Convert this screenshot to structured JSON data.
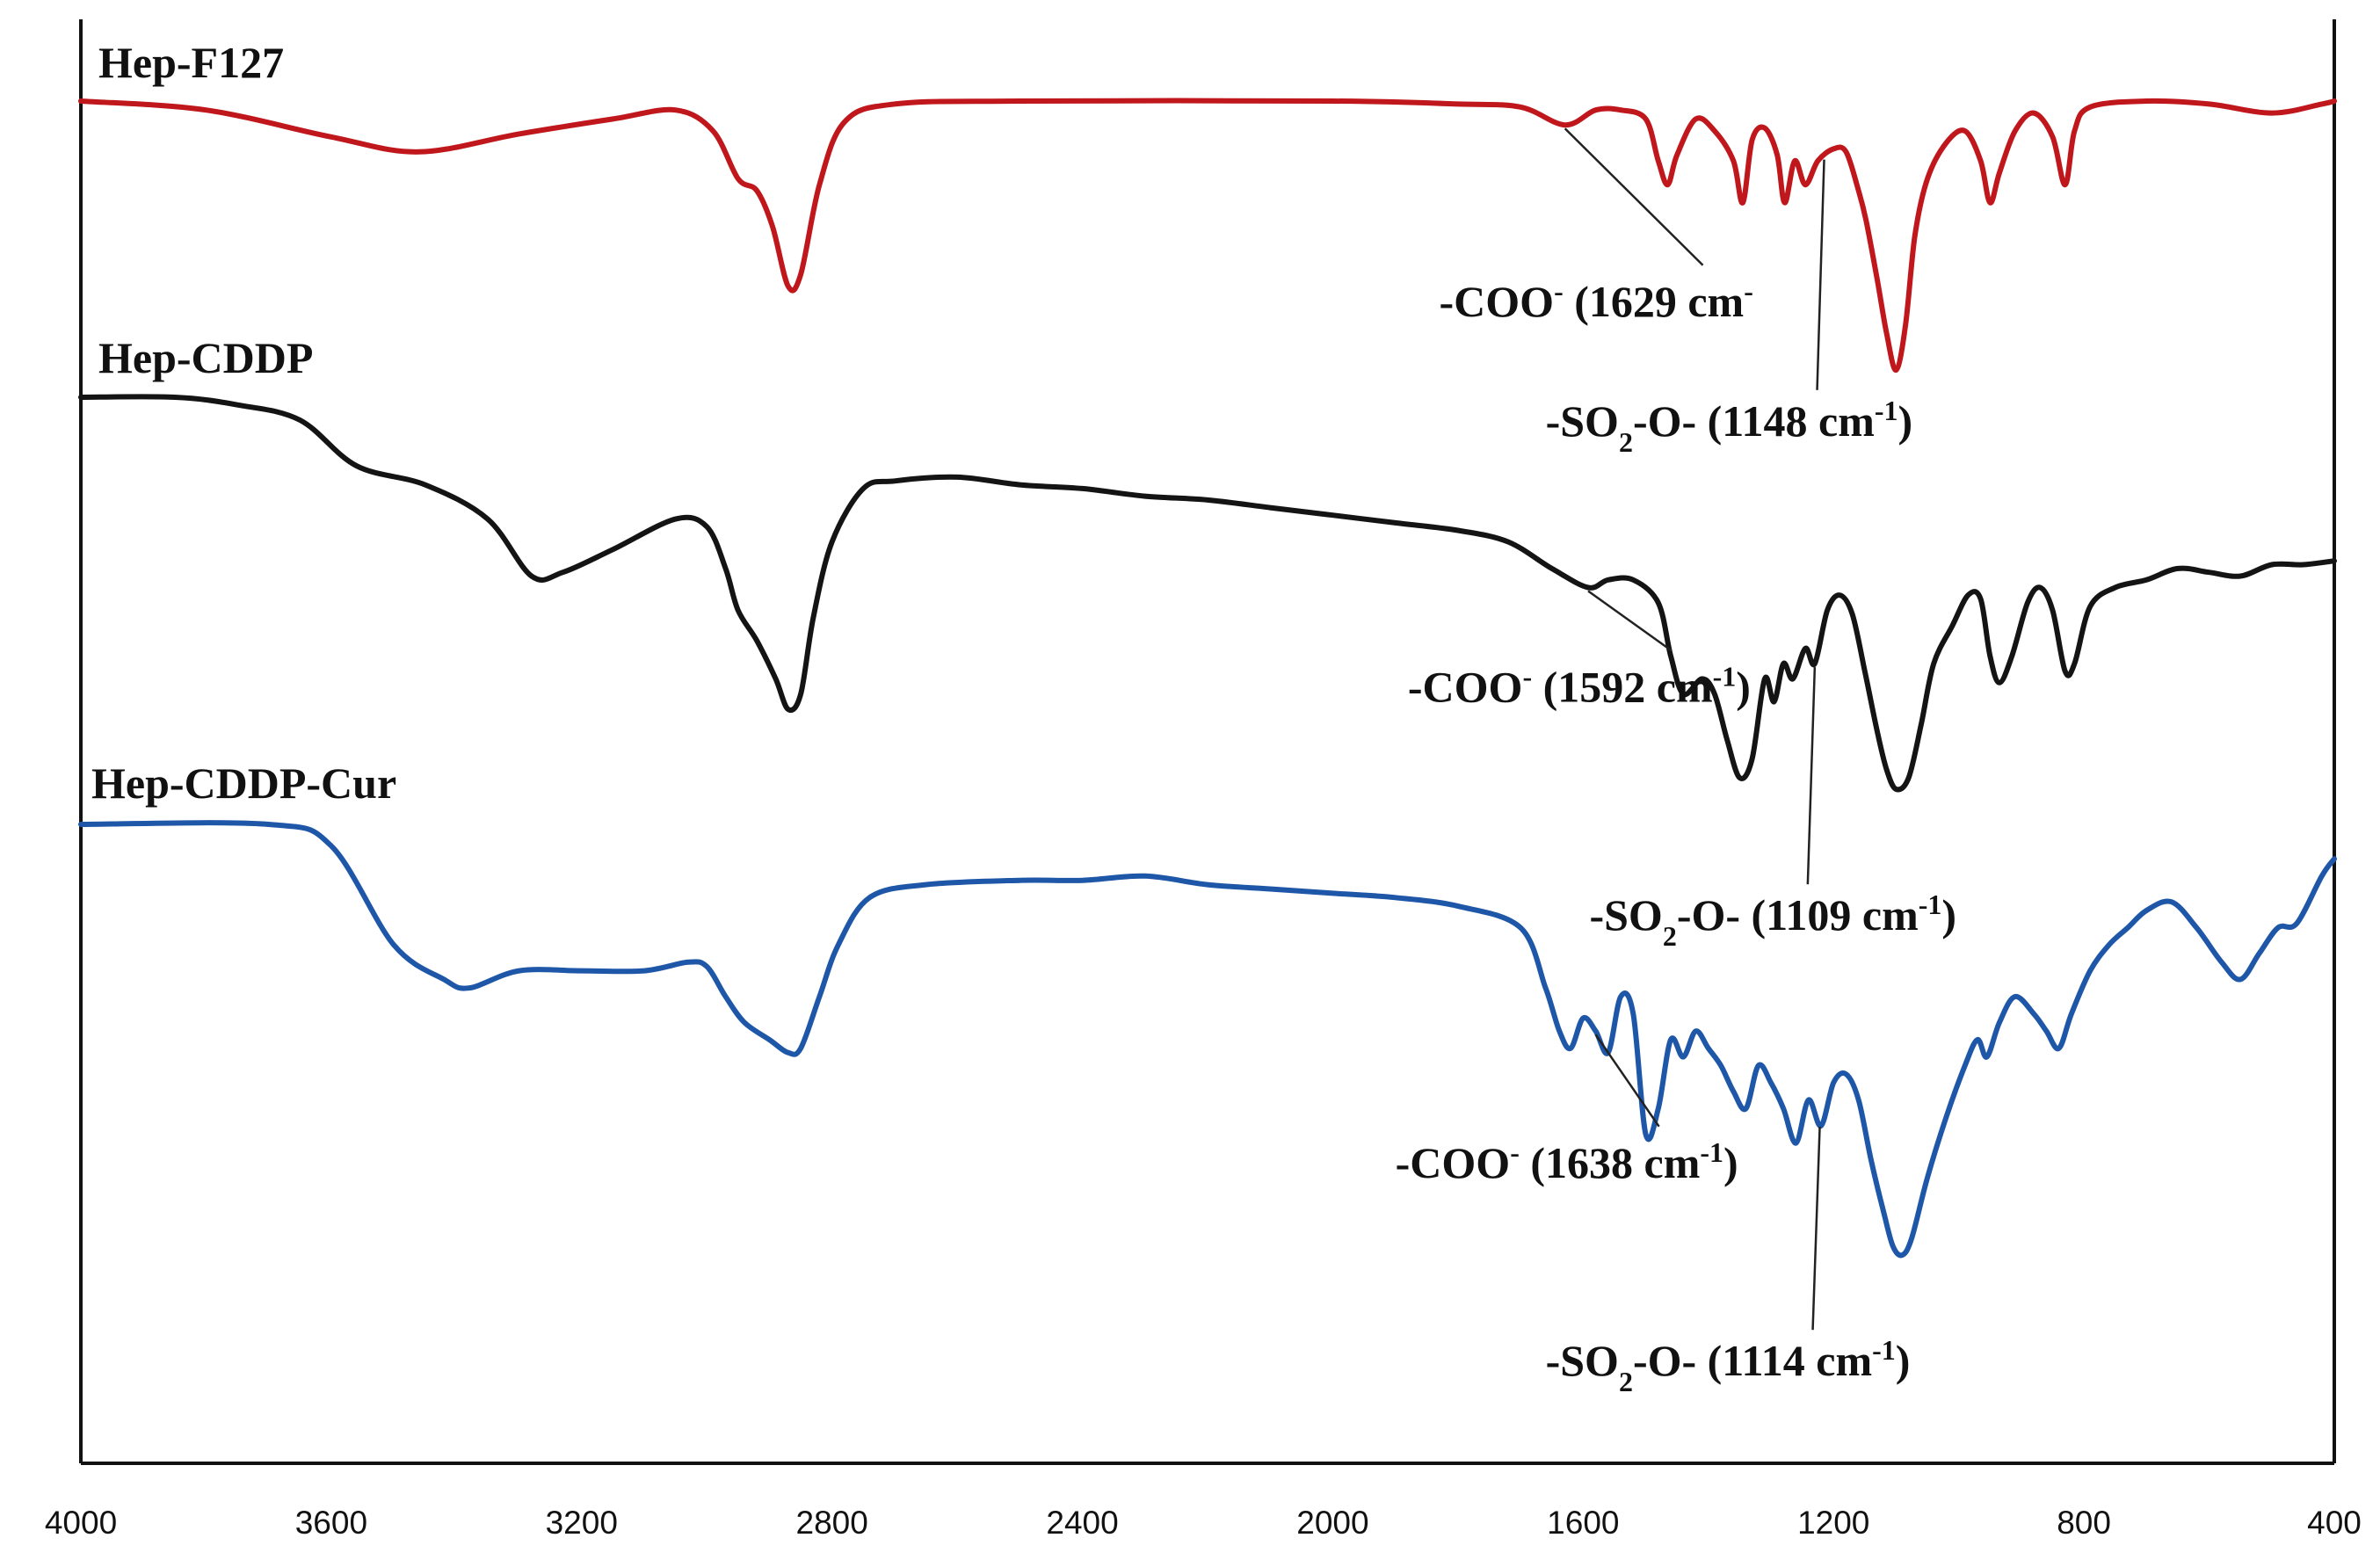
{
  "chart_data": {
    "type": "line",
    "title": "",
    "xlabel": "",
    "ylabel": "",
    "x_reversed": true,
    "xlim": [
      4000,
      400
    ],
    "x_ticks": [
      4000,
      3600,
      3200,
      2800,
      2400,
      2000,
      1600,
      1200,
      800,
      400
    ],
    "grid": false,
    "series": [
      {
        "name": "Hep-F127",
        "color": "#c0171c",
        "offset": 0.0,
        "points": [
          [
            4000,
            1.0
          ],
          [
            3800,
            0.97
          ],
          [
            3600,
            0.88
          ],
          [
            3460,
            0.83
          ],
          [
            3300,
            0.89
          ],
          [
            3150,
            0.94
          ],
          [
            3050,
            0.97
          ],
          [
            2990,
            0.9
          ],
          [
            2950,
            0.74
          ],
          [
            2920,
            0.7
          ],
          [
            2895,
            0.58
          ],
          [
            2870,
            0.38
          ],
          [
            2850,
            0.42
          ],
          [
            2820,
            0.72
          ],
          [
            2780,
            0.93
          ],
          [
            2700,
            0.99
          ],
          [
            2500,
            1.0
          ],
          [
            2000,
            1.0
          ],
          [
            1800,
            0.99
          ],
          [
            1700,
            0.98
          ],
          [
            1629,
            0.92
          ],
          [
            1580,
            0.97
          ],
          [
            1540,
            0.97
          ],
          [
            1500,
            0.94
          ],
          [
            1480,
            0.8
          ],
          [
            1465,
            0.72
          ],
          [
            1450,
            0.82
          ],
          [
            1420,
            0.94
          ],
          [
            1390,
            0.9
          ],
          [
            1360,
            0.8
          ],
          [
            1345,
            0.66
          ],
          [
            1330,
            0.87
          ],
          [
            1310,
            0.91
          ],
          [
            1290,
            0.82
          ],
          [
            1278,
            0.66
          ],
          [
            1262,
            0.8
          ],
          [
            1245,
            0.72
          ],
          [
            1225,
            0.8
          ],
          [
            1200,
            0.84
          ],
          [
            1180,
            0.83
          ],
          [
            1160,
            0.7
          ],
          [
            1148,
            0.6
          ],
          [
            1130,
            0.4
          ],
          [
            1115,
            0.22
          ],
          [
            1100,
            0.1
          ],
          [
            1085,
            0.25
          ],
          [
            1070,
            0.55
          ],
          [
            1050,
            0.74
          ],
          [
            1020,
            0.86
          ],
          [
            990,
            0.9
          ],
          [
            965,
            0.8
          ],
          [
            950,
            0.66
          ],
          [
            935,
            0.76
          ],
          [
            910,
            0.9
          ],
          [
            880,
            0.96
          ],
          [
            850,
            0.88
          ],
          [
            830,
            0.72
          ],
          [
            815,
            0.9
          ],
          [
            790,
            0.98
          ],
          [
            700,
            1.0
          ],
          [
            600,
            0.99
          ],
          [
            500,
            0.96
          ],
          [
            420,
            0.99
          ],
          [
            400,
            1.0
          ]
        ]
      },
      {
        "name": "Hep-CDDP",
        "color": "#141414",
        "offset": 0.0,
        "points": [
          [
            4000,
            1.0
          ],
          [
            3850,
            1.0
          ],
          [
            3750,
            0.98
          ],
          [
            3650,
            0.94
          ],
          [
            3560,
            0.82
          ],
          [
            3450,
            0.77
          ],
          [
            3350,
            0.68
          ],
          [
            3280,
            0.53
          ],
          [
            3230,
            0.54
          ],
          [
            3150,
            0.6
          ],
          [
            3050,
            0.68
          ],
          [
            3000,
            0.66
          ],
          [
            2970,
            0.55
          ],
          [
            2950,
            0.44
          ],
          [
            2920,
            0.36
          ],
          [
            2890,
            0.26
          ],
          [
            2870,
            0.18
          ],
          [
            2850,
            0.22
          ],
          [
            2830,
            0.42
          ],
          [
            2800,
            0.62
          ],
          [
            2750,
            0.76
          ],
          [
            2700,
            0.78
          ],
          [
            2600,
            0.79
          ],
          [
            2500,
            0.77
          ],
          [
            2400,
            0.76
          ],
          [
            2300,
            0.74
          ],
          [
            2200,
            0.73
          ],
          [
            2100,
            0.71
          ],
          [
            2000,
            0.69
          ],
          [
            1900,
            0.67
          ],
          [
            1800,
            0.65
          ],
          [
            1720,
            0.62
          ],
          [
            1650,
            0.55
          ],
          [
            1592,
            0.5
          ],
          [
            1560,
            0.52
          ],
          [
            1520,
            0.52
          ],
          [
            1480,
            0.46
          ],
          [
            1460,
            0.32
          ],
          [
            1440,
            0.22
          ],
          [
            1410,
            0.26
          ],
          [
            1390,
            0.22
          ],
          [
            1370,
            0.1
          ],
          [
            1350,
            0.0
          ],
          [
            1330,
            0.05
          ],
          [
            1310,
            0.26
          ],
          [
            1295,
            0.2
          ],
          [
            1280,
            0.3
          ],
          [
            1265,
            0.26
          ],
          [
            1245,
            0.34
          ],
          [
            1230,
            0.3
          ],
          [
            1210,
            0.44
          ],
          [
            1190,
            0.48
          ],
          [
            1170,
            0.43
          ],
          [
            1150,
            0.28
          ],
          [
            1130,
            0.12
          ],
          [
            1115,
            0.02
          ],
          [
            1100,
            -0.03
          ],
          [
            1080,
            0.0
          ],
          [
            1060,
            0.14
          ],
          [
            1040,
            0.3
          ],
          [
            1010,
            0.4
          ],
          [
            985,
            0.48
          ],
          [
            965,
            0.47
          ],
          [
            950,
            0.32
          ],
          [
            935,
            0.25
          ],
          [
            915,
            0.32
          ],
          [
            890,
            0.46
          ],
          [
            870,
            0.5
          ],
          [
            850,
            0.44
          ],
          [
            830,
            0.28
          ],
          [
            815,
            0.3
          ],
          [
            790,
            0.45
          ],
          [
            750,
            0.5
          ],
          [
            700,
            0.52
          ],
          [
            650,
            0.55
          ],
          [
            600,
            0.54
          ],
          [
            550,
            0.53
          ],
          [
            500,
            0.56
          ],
          [
            450,
            0.56
          ],
          [
            400,
            0.57
          ]
        ]
      },
      {
        "name": "Hep-CDDP-Cur",
        "color": "#1f57a8",
        "offset": 0.0,
        "points": [
          [
            4000,
            1.0
          ],
          [
            3700,
            1.0
          ],
          [
            3600,
            0.95
          ],
          [
            3500,
            0.72
          ],
          [
            3420,
            0.64
          ],
          [
            3380,
            0.62
          ],
          [
            3300,
            0.66
          ],
          [
            3200,
            0.66
          ],
          [
            3100,
            0.66
          ],
          [
            3030,
            0.68
          ],
          [
            3000,
            0.67
          ],
          [
            2970,
            0.6
          ],
          [
            2940,
            0.54
          ],
          [
            2900,
            0.5
          ],
          [
            2870,
            0.47
          ],
          [
            2850,
            0.48
          ],
          [
            2820,
            0.6
          ],
          [
            2790,
            0.72
          ],
          [
            2740,
            0.83
          ],
          [
            2650,
            0.86
          ],
          [
            2500,
            0.87
          ],
          [
            2400,
            0.87
          ],
          [
            2300,
            0.88
          ],
          [
            2200,
            0.86
          ],
          [
            2100,
            0.85
          ],
          [
            2000,
            0.84
          ],
          [
            1900,
            0.83
          ],
          [
            1800,
            0.81
          ],
          [
            1700,
            0.76
          ],
          [
            1660,
            0.62
          ],
          [
            1638,
            0.52
          ],
          [
            1620,
            0.48
          ],
          [
            1600,
            0.55
          ],
          [
            1580,
            0.52
          ],
          [
            1560,
            0.47
          ],
          [
            1540,
            0.6
          ],
          [
            1520,
            0.56
          ],
          [
            1500,
            0.28
          ],
          [
            1480,
            0.34
          ],
          [
            1460,
            0.5
          ],
          [
            1440,
            0.46
          ],
          [
            1420,
            0.52
          ],
          [
            1400,
            0.48
          ],
          [
            1380,
            0.44
          ],
          [
            1360,
            0.38
          ],
          [
            1340,
            0.34
          ],
          [
            1320,
            0.44
          ],
          [
            1300,
            0.4
          ],
          [
            1280,
            0.34
          ],
          [
            1260,
            0.26
          ],
          [
            1240,
            0.36
          ],
          [
            1220,
            0.3
          ],
          [
            1200,
            0.4
          ],
          [
            1180,
            0.42
          ],
          [
            1160,
            0.36
          ],
          [
            1140,
            0.22
          ],
          [
            1120,
            0.1
          ],
          [
            1105,
            0.02
          ],
          [
            1090,
            0.0
          ],
          [
            1075,
            0.04
          ],
          [
            1050,
            0.18
          ],
          [
            1020,
            0.32
          ],
          [
            990,
            0.44
          ],
          [
            970,
            0.5
          ],
          [
            955,
            0.46
          ],
          [
            935,
            0.54
          ],
          [
            910,
            0.6
          ],
          [
            880,
            0.56
          ],
          [
            860,
            0.52
          ],
          [
            840,
            0.48
          ],
          [
            820,
            0.56
          ],
          [
            790,
            0.66
          ],
          [
            760,
            0.72
          ],
          [
            730,
            0.76
          ],
          [
            700,
            0.8
          ],
          [
            660,
            0.82
          ],
          [
            620,
            0.76
          ],
          [
            580,
            0.68
          ],
          [
            550,
            0.64
          ],
          [
            520,
            0.7
          ],
          [
            490,
            0.76
          ],
          [
            460,
            0.77
          ],
          [
            420,
            0.88
          ],
          [
            400,
            0.92
          ]
        ]
      }
    ],
    "annotations": [
      {
        "series": 0,
        "lead": "-COO",
        "sup": "-",
        "wn": "(1629 cm",
        "wn_sup": "-",
        "close": "",
        "anchor_x": 1629,
        "label_x": 1830,
        "label_y": 0.28
      },
      {
        "series": 0,
        "lead": "-SO",
        "sub": "2",
        "rest": "-O- (1148 cm",
        "wn_sup": "-1",
        "close": ")",
        "anchor_x": 1215,
        "label_x": 1660,
        "label_y": -0.12
      },
      {
        "series": 1,
        "lead": "-COO",
        "sup": "-",
        "wn": "(1592 cm",
        "wn_sup": "-1",
        "close": ")",
        "anchor_x": 1592,
        "label_x": 1880,
        "label_y": 0.2
      },
      {
        "series": 1,
        "lead": "-SO",
        "sub": "2",
        "rest": "-O- (1109 cm",
        "wn_sup": "-1",
        "close": ")",
        "anchor_x": 1230,
        "label_x": 1590,
        "label_y": -0.4
      },
      {
        "series": 2,
        "lead": "-COO",
        "sup": "-",
        "wn": "(1638 cm",
        "wn_sup": "-1",
        "close": ")",
        "anchor_x": 1580,
        "label_x": 1900,
        "label_y": 0.18
      },
      {
        "series": 2,
        "lead": "-SO",
        "sub": "2",
        "rest": "-O- (1114 cm",
        "wn_sup": "-1",
        "close": ")",
        "anchor_x": 1222,
        "label_x": 1660,
        "label_y": -0.28
      }
    ]
  }
}
